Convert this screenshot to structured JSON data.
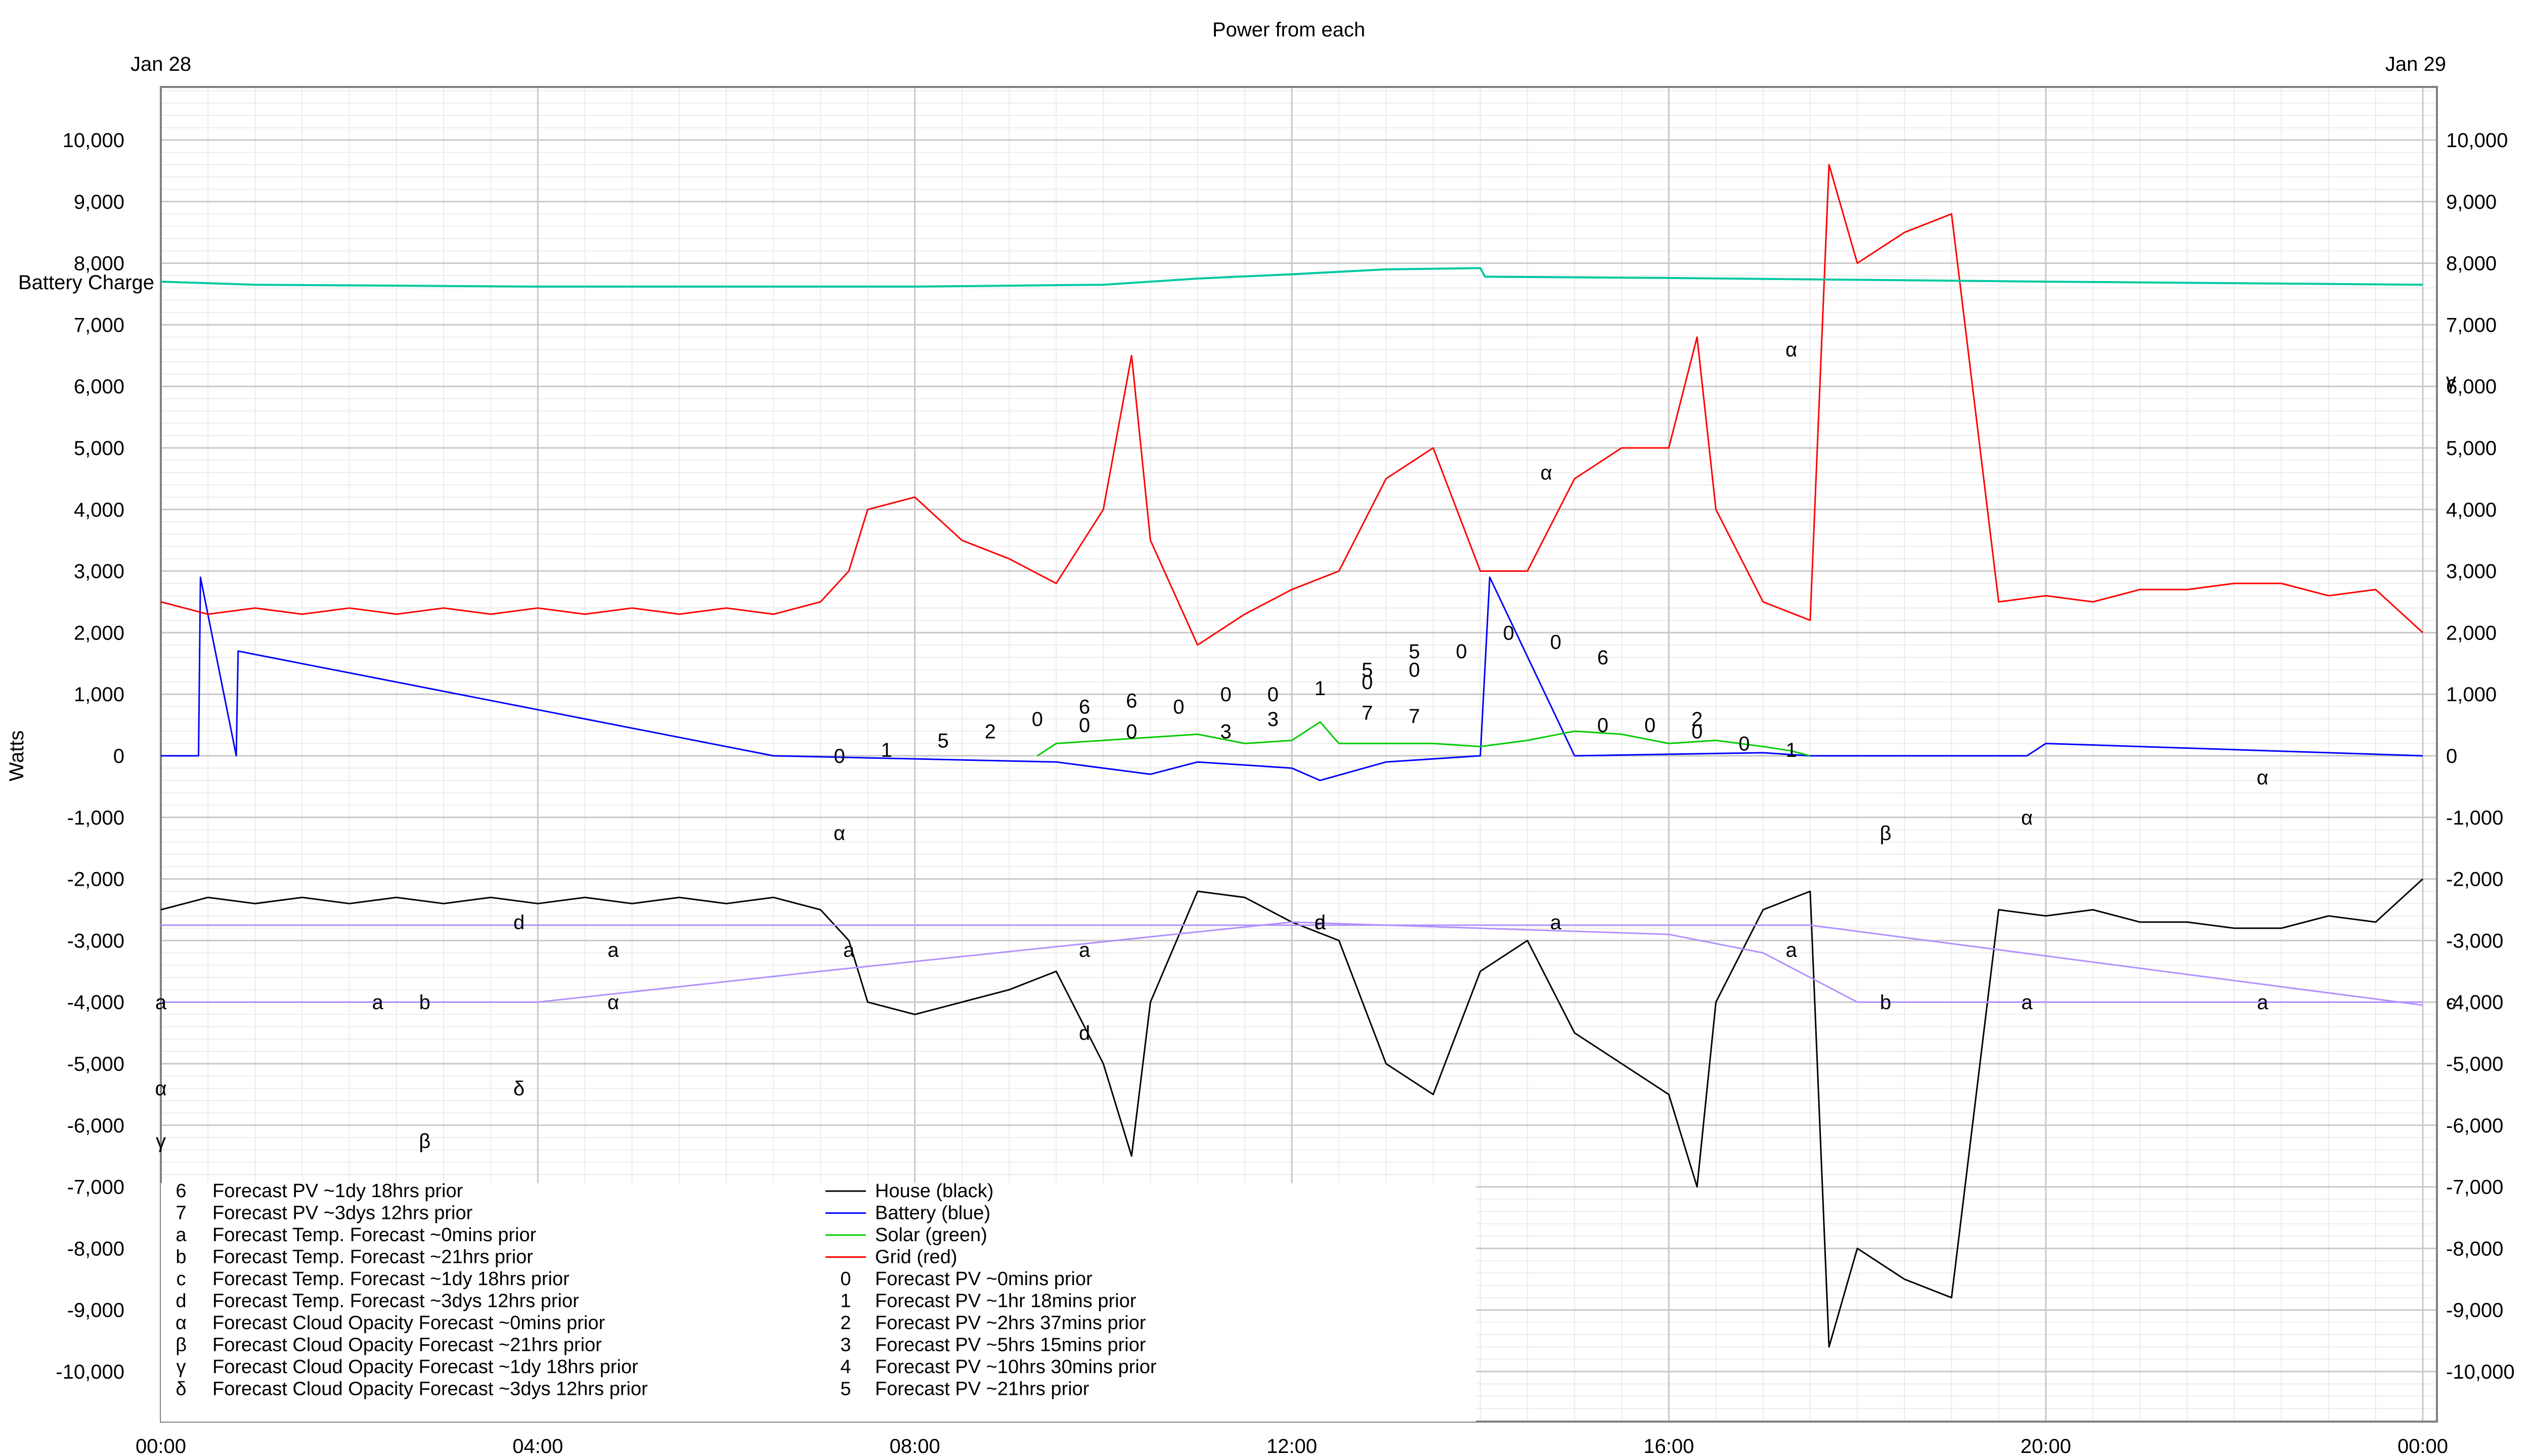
{
  "chart_data": {
    "type": "line",
    "title": "Power from each",
    "date_left": "Jan 28",
    "date_right": "Jan 29",
    "ylabel": "Watts",
    "ylim": [
      -11200,
      11000
    ],
    "xlim": [
      0,
      24
    ],
    "grid": true,
    "y_ticks": [
      {
        "v": 10000,
        "label": "10,000"
      },
      {
        "v": 9000,
        "label": "9,000"
      },
      {
        "v": 8000,
        "label": "8,000"
      },
      {
        "v": 7000,
        "label": "7,000"
      },
      {
        "v": 6000,
        "label": "6,000"
      },
      {
        "v": 5000,
        "label": "5,000"
      },
      {
        "v": 4000,
        "label": "4,000"
      },
      {
        "v": 3000,
        "label": "3,000"
      },
      {
        "v": 2000,
        "label": "2,000"
      },
      {
        "v": 1000,
        "label": "1,000"
      },
      {
        "v": 0,
        "label": "0"
      },
      {
        "v": -1000,
        "label": "-1,000"
      },
      {
        "v": -2000,
        "label": "-2,000"
      },
      {
        "v": -3000,
        "label": "-3,000"
      },
      {
        "v": -4000,
        "label": "-4,000"
      },
      {
        "v": -5000,
        "label": "-5,000"
      },
      {
        "v": -6000,
        "label": "-6,000"
      },
      {
        "v": -7000,
        "label": "-7,000"
      },
      {
        "v": -8000,
        "label": "-8,000"
      },
      {
        "v": -9000,
        "label": "-9,000"
      },
      {
        "v": -10000,
        "label": "-10,000"
      }
    ],
    "x_ticks": [
      {
        "v": 0,
        "label": "00:00"
      },
      {
        "v": 4,
        "label": "04:00"
      },
      {
        "v": 8,
        "label": "08:00"
      },
      {
        "v": 12,
        "label": "12:00"
      },
      {
        "v": 16,
        "label": "16:00"
      },
      {
        "v": 20,
        "label": "20:00"
      },
      {
        "v": 24,
        "label": "00:00"
      }
    ],
    "battery_charge_label": "Battery Charge",
    "series": [
      {
        "name": "House (black)",
        "color": "#000000",
        "x": [
          0,
          0.5,
          1,
          1.5,
          2,
          2.5,
          3,
          3.5,
          4,
          4.5,
          5,
          5.5,
          6,
          6.5,
          7,
          7.3,
          7.5,
          8,
          8.5,
          9,
          9.5,
          10,
          10.3,
          10.5,
          11,
          11.5,
          12,
          12.5,
          13,
          13.5,
          14,
          14.5,
          15,
          15.5,
          16,
          16.3,
          16.5,
          17,
          17.5,
          17.7,
          18,
          18.5,
          19,
          19.5,
          20,
          20.5,
          21,
          21.5,
          22,
          22.5,
          23,
          23.5,
          24
        ],
        "y": [
          -2500,
          -2300,
          -2400,
          -2300,
          -2400,
          -2300,
          -2400,
          -2300,
          -2400,
          -2300,
          -2400,
          -2300,
          -2400,
          -2300,
          -2500,
          -3000,
          -4000,
          -4200,
          -4000,
          -3800,
          -3500,
          -5000,
          -6500,
          -4000,
          -2200,
          -2300,
          -2700,
          -3000,
          -5000,
          -5500,
          -3500,
          -3000,
          -4500,
          -5000,
          -5500,
          -7000,
          -4000,
          -2500,
          -2200,
          -9600,
          -8000,
          -8500,
          -8800,
          -2500,
          -2600,
          -2500,
          -2700,
          -2700,
          -2800,
          -2800,
          -2600,
          -2700,
          -2000
        ]
      },
      {
        "name": "Battery (blue)",
        "color": "#0000ff",
        "x": [
          0,
          0.4,
          0.42,
          0.8,
          0.82,
          6.5,
          9.5,
          10.5,
          11,
          12,
          12.3,
          13,
          14,
          14.1,
          15,
          17,
          17.5,
          19.8,
          20,
          24
        ],
        "y": [
          0,
          0,
          2900,
          0,
          1700,
          0,
          -100,
          -300,
          -100,
          -200,
          -400,
          -100,
          0,
          2900,
          0,
          50,
          0,
          0,
          200,
          0
        ]
      },
      {
        "name": "Solar (green)",
        "color": "#00cc00",
        "x": [
          9.3,
          9.5,
          10,
          10.5,
          11,
          11.5,
          12,
          12.3,
          12.5,
          13,
          13.5,
          14,
          14.5,
          15,
          15.5,
          16,
          16.5,
          17,
          17.3,
          17.5
        ],
        "y": [
          0,
          200,
          250,
          300,
          350,
          200,
          250,
          550,
          200,
          200,
          200,
          150,
          250,
          400,
          350,
          200,
          250,
          150,
          80,
          0
        ]
      },
      {
        "name": "Grid (red)",
        "color": "#ff0000",
        "x": [
          0,
          0.5,
          1,
          1.5,
          2,
          2.5,
          3,
          3.5,
          4,
          4.5,
          5,
          5.5,
          6,
          6.5,
          7,
          7.3,
          7.5,
          8,
          8.5,
          9,
          9.5,
          10,
          10.3,
          10.5,
          11,
          11.5,
          12,
          12.5,
          13,
          13.5,
          14,
          14.5,
          15,
          15.5,
          16,
          16.3,
          16.5,
          17,
          17.5,
          17.7,
          18,
          18.5,
          19,
          19.5,
          20,
          20.5,
          21,
          21.5,
          22,
          22.5,
          23,
          23.5,
          24
        ],
        "y": [
          2500,
          2300,
          2400,
          2300,
          2400,
          2300,
          2400,
          2300,
          2400,
          2300,
          2400,
          2300,
          2400,
          2300,
          2500,
          3000,
          4000,
          4200,
          3500,
          3200,
          2800,
          4000,
          6500,
          3500,
          1800,
          2300,
          2700,
          3000,
          4500,
          5000,
          3000,
          3000,
          4500,
          5000,
          5000,
          6800,
          4000,
          2500,
          2200,
          9600,
          8000,
          8500,
          8800,
          2500,
          2600,
          2500,
          2700,
          2700,
          2800,
          2800,
          2600,
          2700,
          2000
        ]
      },
      {
        "name": "Battery Charge",
        "color": "#00c8a0",
        "x": [
          0,
          1,
          4,
          8,
          10,
          11,
          12,
          13,
          14,
          14.05,
          16,
          20,
          24
        ],
        "y": [
          7700,
          7650,
          7620,
          7620,
          7650,
          7750,
          7820,
          7900,
          7920,
          7780,
          7760,
          7700,
          7650
        ]
      },
      {
        "name": "Forecast Temp. Forecast ~0mins prior",
        "color": "#b090ff",
        "x": [
          0,
          4,
          7,
          12,
          16,
          17,
          18,
          20,
          24
        ],
        "y": [
          -4000,
          -4000,
          -3500,
          -2700,
          -2900,
          -3200,
          -4000,
          -4000,
          -4000
        ]
      },
      {
        "name": "Forecast Temp. Forecast ~21hrs prior",
        "color": "#b090ff",
        "x": [
          0,
          6,
          10,
          13,
          16,
          17.5,
          24
        ],
        "y": [
          -2750,
          -2750,
          -2750,
          -2750,
          -2750,
          -2750,
          -4050
        ]
      }
    ],
    "legend_left": [
      {
        "marker": "6",
        "label": "Forecast PV ~1dy 18hrs prior"
      },
      {
        "marker": "7",
        "label": "Forecast PV ~3dys 12hrs prior"
      },
      {
        "marker": "a",
        "label": "Forecast Temp. Forecast ~0mins prior"
      },
      {
        "marker": "b",
        "label": "Forecast Temp. Forecast ~21hrs prior"
      },
      {
        "marker": "c",
        "label": "Forecast Temp. Forecast ~1dy 18hrs prior"
      },
      {
        "marker": "d",
        "label": "Forecast Temp. Forecast ~3dys 12hrs prior"
      },
      {
        "marker": "α",
        "label": "Forecast Cloud Opacity Forecast ~0mins prior"
      },
      {
        "marker": "β",
        "label": "Forecast Cloud Opacity Forecast ~21hrs prior"
      },
      {
        "marker": "γ",
        "label": "Forecast Cloud Opacity Forecast ~1dy 18hrs prior"
      },
      {
        "marker": "δ",
        "label": "Forecast Cloud Opacity Forecast ~3dys 12hrs prior"
      }
    ],
    "legend_right": [
      {
        "marker": "",
        "label": "House (black)",
        "color": "#000000"
      },
      {
        "marker": "",
        "label": "Battery (blue)",
        "color": "#0000ff"
      },
      {
        "marker": "",
        "label": "Solar (green)",
        "color": "#00cc00"
      },
      {
        "marker": "",
        "label": "Grid (red)",
        "color": "#ff0000"
      },
      {
        "marker": "0",
        "label": "Forecast PV ~0mins prior"
      },
      {
        "marker": "1",
        "label": "Forecast PV ~1hr 18mins prior"
      },
      {
        "marker": "2",
        "label": "Forecast PV ~2hrs 37mins prior"
      },
      {
        "marker": "3",
        "label": "Forecast PV ~5hrs 15mins prior"
      },
      {
        "marker": "4",
        "label": "Forecast PV ~10hrs 30mins prior"
      },
      {
        "marker": "5",
        "label": "Forecast PV ~21hrs prior"
      }
    ],
    "point_markers": [
      {
        "t": "0",
        "x": 7.2,
        "y": 0
      },
      {
        "t": "1",
        "x": 7.7,
        "y": 100
      },
      {
        "t": "5",
        "x": 8.3,
        "y": 250
      },
      {
        "t": "2",
        "x": 8.8,
        "y": 400
      },
      {
        "t": "0",
        "x": 9.3,
        "y": 600
      },
      {
        "t": "6",
        "x": 9.8,
        "y": 800
      },
      {
        "t": "0",
        "x": 9.8,
        "y": 500
      },
      {
        "t": "6",
        "x": 10.3,
        "y": 900
      },
      {
        "t": "0",
        "x": 10.3,
        "y": 400
      },
      {
        "t": "0",
        "x": 10.8,
        "y": 800
      },
      {
        "t": "0",
        "x": 11.3,
        "y": 1000
      },
      {
        "t": "3",
        "x": 11.3,
        "y": 400
      },
      {
        "t": "0",
        "x": 11.8,
        "y": 1000
      },
      {
        "t": "3",
        "x": 11.8,
        "y": 600
      },
      {
        "t": "1",
        "x": 12.3,
        "y": 1100
      },
      {
        "t": "5",
        "x": 12.8,
        "y": 1400
      },
      {
        "t": "0",
        "x": 12.8,
        "y": 1200
      },
      {
        "t": "7",
        "x": 12.8,
        "y": 700
      },
      {
        "t": "5",
        "x": 13.3,
        "y": 1700
      },
      {
        "t": "0",
        "x": 13.3,
        "y": 1400
      },
      {
        "t": "7",
        "x": 13.3,
        "y": 650
      },
      {
        "t": "0",
        "x": 13.8,
        "y": 1700
      },
      {
        "t": "0",
        "x": 14.3,
        "y": 2000
      },
      {
        "t": "0",
        "x": 14.8,
        "y": 1850
      },
      {
        "t": "6",
        "x": 15.3,
        "y": 1600
      },
      {
        "t": "0",
        "x": 15.3,
        "y": 500
      },
      {
        "t": "0",
        "x": 15.8,
        "y": 500
      },
      {
        "t": "2",
        "x": 16.3,
        "y": 600
      },
      {
        "t": "0",
        "x": 16.3,
        "y": 400
      },
      {
        "t": "0",
        "x": 16.8,
        "y": 200
      },
      {
        "t": "1",
        "x": 17.3,
        "y": 100
      },
      {
        "t": "α",
        "x": 7.2,
        "y": -1250
      },
      {
        "t": "α",
        "x": 4.8,
        "y": -4000
      },
      {
        "t": "α",
        "x": 14.7,
        "y": 4600
      },
      {
        "t": "α",
        "x": 17.3,
        "y": 6600
      },
      {
        "t": "α",
        "x": 19.8,
        "y": -1000
      },
      {
        "t": "α",
        "x": 22.3,
        "y": -350
      },
      {
        "t": "α",
        "x": 0,
        "y": -5400
      },
      {
        "t": "β",
        "x": 2.8,
        "y": -6250
      },
      {
        "t": "β",
        "x": 18.3,
        "y": -1250
      },
      {
        "t": "γ",
        "x": 0,
        "y": -6250
      },
      {
        "t": "γ",
        "x": 2.3,
        "y": -7100
      },
      {
        "t": "γ",
        "x": 24.3,
        "y": 6100
      },
      {
        "t": "δ",
        "x": 3.8,
        "y": -5400
      },
      {
        "t": "a",
        "x": 0,
        "y": -4000
      },
      {
        "t": "a",
        "x": 2.3,
        "y": -4000
      },
      {
        "t": "b",
        "x": 2.8,
        "y": -4000
      },
      {
        "t": "a",
        "x": 4.8,
        "y": -3150
      },
      {
        "t": "a",
        "x": 7.3,
        "y": -3150
      },
      {
        "t": "a",
        "x": 9.8,
        "y": -3150
      },
      {
        "t": "a",
        "x": 12.3,
        "y": -2700
      },
      {
        "t": "a",
        "x": 14.8,
        "y": -2700
      },
      {
        "t": "a",
        "x": 17.3,
        "y": -3150
      },
      {
        "t": "b",
        "x": 18.3,
        "y": -4000
      },
      {
        "t": "a",
        "x": 19.8,
        "y": -4000
      },
      {
        "t": "a",
        "x": 22.3,
        "y": -4000
      },
      {
        "t": "c",
        "x": 24.3,
        "y": -4000
      },
      {
        "t": "d",
        "x": 3.8,
        "y": -2700
      },
      {
        "t": "d",
        "x": 9.8,
        "y": -4500
      },
      {
        "t": "d",
        "x": 12.3,
        "y": -2700
      }
    ]
  }
}
